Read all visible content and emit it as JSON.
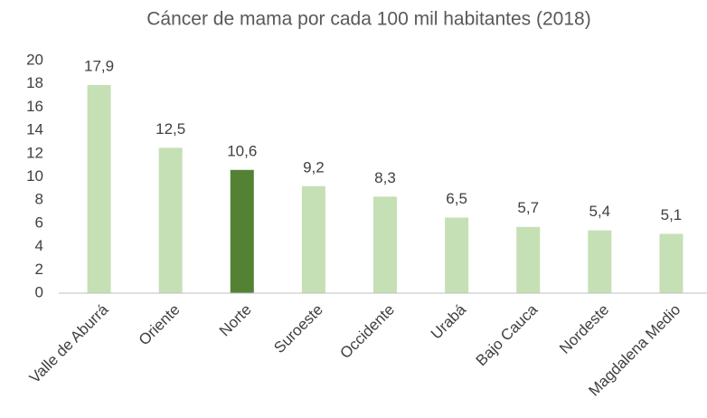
{
  "chart_data": {
    "type": "bar",
    "title": "Cáncer de mama por cada 100 mil habitantes (2018)",
    "categories": [
      "Valle de Aburrá",
      "Oriente",
      "Norte",
      "Suroeste",
      "Occidente",
      "Urabá",
      "Bajo Cauca",
      "Nordeste",
      "Magdalena Medio"
    ],
    "values": [
      17.9,
      12.5,
      10.6,
      9.2,
      8.3,
      6.5,
      5.7,
      5.4,
      5.1
    ],
    "value_labels": [
      "17,9",
      "12,5",
      "10,6",
      "9,2",
      "8,3",
      "6,5",
      "5,7",
      "5,4",
      "5,1"
    ],
    "colors": [
      "#c5e0b4",
      "#c5e0b4",
      "#548235",
      "#c5e0b4",
      "#c5e0b4",
      "#c5e0b4",
      "#c5e0b4",
      "#c5e0b4",
      "#c5e0b4"
    ],
    "ylim": [
      0,
      20
    ],
    "yticks": [
      0,
      2,
      4,
      6,
      8,
      10,
      12,
      14,
      16,
      18,
      20
    ],
    "grid": false
  }
}
